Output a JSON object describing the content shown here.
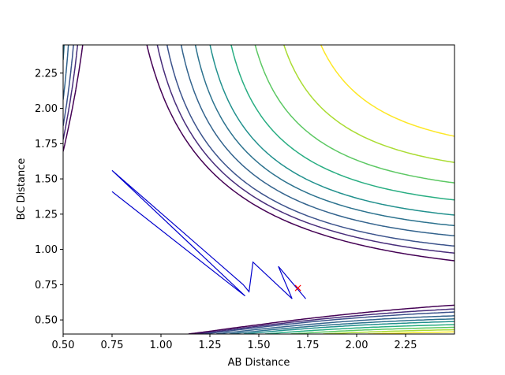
{
  "chart_data": {
    "type": "contour",
    "title": "",
    "xlabel": "AB Distance",
    "ylabel": "BC Distance",
    "xlim": [
      0.5,
      2.5
    ],
    "ylim": [
      0.4,
      2.45
    ],
    "xticks": [
      "0.50",
      "0.75",
      "1.00",
      "1.25",
      "1.50",
      "1.75",
      "2.00",
      "2.25"
    ],
    "yticks": [
      "0.50",
      "0.75",
      "1.00",
      "1.25",
      "1.50",
      "1.75",
      "2.00",
      "2.25"
    ],
    "grid": false,
    "legend": "none",
    "contour_levels": [
      {
        "level": -4.2,
        "color": "#440154"
      },
      {
        "level": -4.0,
        "color": "#472c7a"
      },
      {
        "level": -3.8,
        "color": "#3b528b"
      },
      {
        "level": -3.5,
        "color": "#33638d"
      },
      {
        "level": -3.2,
        "color": "#2c728e"
      },
      {
        "level": -2.9,
        "color": "#21908d"
      },
      {
        "level": -2.5,
        "color": "#27ad81"
      },
      {
        "level": -2.1,
        "color": "#5cc863"
      },
      {
        "level": -1.7,
        "color": "#aadc32"
      },
      {
        "level": -1.3,
        "color": "#fde725"
      }
    ],
    "trajectory": {
      "points": [
        [
          0.75,
          1.41
        ],
        [
          1.43,
          0.67
        ],
        [
          0.75,
          1.56
        ],
        [
          1.42,
          0.75
        ],
        [
          1.45,
          0.7
        ],
        [
          1.47,
          0.91
        ],
        [
          1.67,
          0.65
        ],
        [
          1.6,
          0.88
        ],
        [
          1.74,
          0.65
        ]
      ],
      "color": "#0000cc"
    },
    "marker": {
      "x": 1.7,
      "y": 0.73,
      "symbol": "×",
      "color": "#ff0000"
    }
  }
}
